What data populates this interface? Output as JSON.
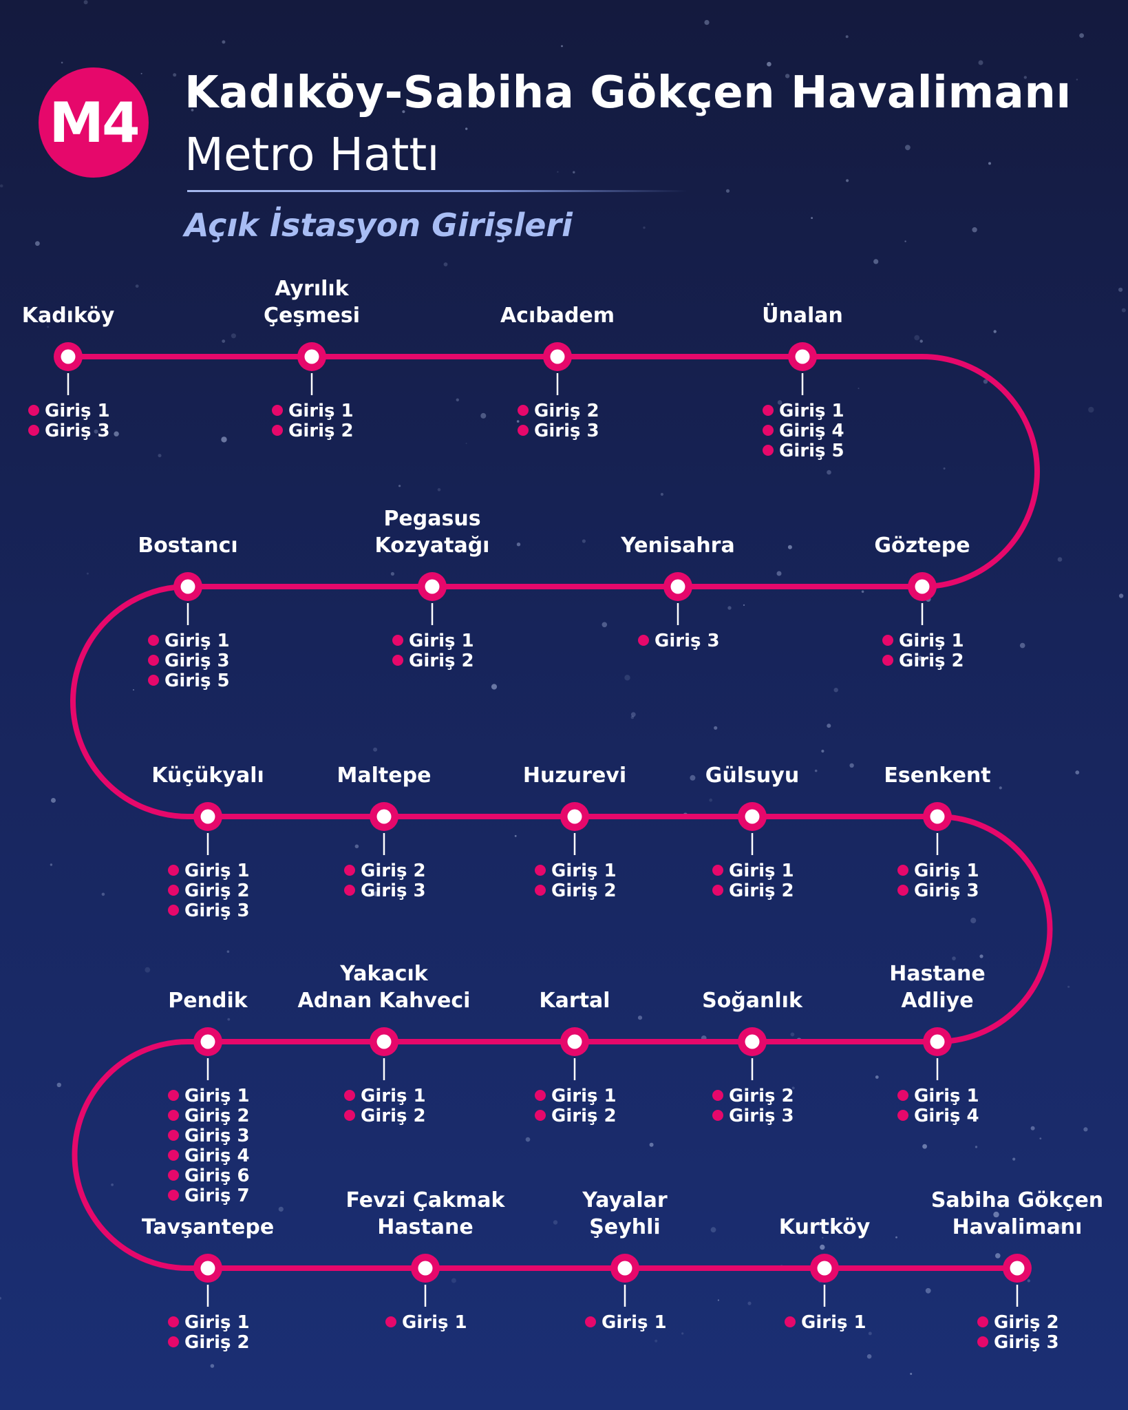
{
  "header": {
    "badge": "M4",
    "title_line1": "Kadıköy-Sabiha Gökçen Havalimanı",
    "title_line2": "Metro Hattı",
    "subtitle": "Açık İstasyon Girişleri"
  },
  "colors": {
    "line": "#e6086b",
    "accent": "#e6086b",
    "subtitle": "#a8bdf4",
    "text": "#ffffff"
  },
  "rows": [
    [
      {
        "name": [
          "Kadıköy"
        ],
        "entrances": [
          "Giriş 1",
          "Giriş 3"
        ]
      },
      {
        "name": [
          "Ayrılık",
          "Çeşmesi"
        ],
        "entrances": [
          "Giriş 1",
          "Giriş 2"
        ]
      },
      {
        "name": [
          "Acıbadem"
        ],
        "entrances": [
          "Giriş 2",
          "Giriş 3"
        ]
      },
      {
        "name": [
          "Ünalan"
        ],
        "entrances": [
          "Giriş 1",
          "Giriş 4",
          "Giriş 5"
        ]
      }
    ],
    [
      {
        "name": [
          "Bostancı"
        ],
        "entrances": [
          "Giriş 1",
          "Giriş 3",
          "Giriş 5"
        ]
      },
      {
        "name": [
          "Pegasus",
          "Kozyatağı"
        ],
        "entrances": [
          "Giriş 1",
          "Giriş 2"
        ]
      },
      {
        "name": [
          "Yenisahra"
        ],
        "entrances": [
          "Giriş 3"
        ]
      },
      {
        "name": [
          "Göztepe"
        ],
        "entrances": [
          "Giriş 1",
          "Giriş 2"
        ]
      }
    ],
    [
      {
        "name": [
          "Küçükyalı"
        ],
        "entrances": [
          "Giriş 1",
          "Giriş 2",
          "Giriş 3"
        ]
      },
      {
        "name": [
          "Maltepe"
        ],
        "entrances": [
          "Giriş 2",
          "Giriş 3"
        ]
      },
      {
        "name": [
          "Huzurevi"
        ],
        "entrances": [
          "Giriş 1",
          "Giriş 2"
        ]
      },
      {
        "name": [
          "Gülsuyu"
        ],
        "entrances": [
          "Giriş 1",
          "Giriş 2"
        ]
      },
      {
        "name": [
          "Esenkent"
        ],
        "entrances": [
          "Giriş 1",
          "Giriş 3"
        ]
      }
    ],
    [
      {
        "name": [
          "Pendik"
        ],
        "entrances": [
          "Giriş 1",
          "Giriş 2",
          "Giriş 3",
          "Giriş 4",
          "Giriş 6",
          "Giriş 7"
        ]
      },
      {
        "name": [
          "Yakacık",
          "Adnan Kahveci"
        ],
        "entrances": [
          "Giriş 1",
          "Giriş 2"
        ]
      },
      {
        "name": [
          "Kartal"
        ],
        "entrances": [
          "Giriş 1",
          "Giriş 2"
        ]
      },
      {
        "name": [
          "Soğanlık"
        ],
        "entrances": [
          "Giriş 2",
          "Giriş 3"
        ]
      },
      {
        "name": [
          "Hastane",
          "Adliye"
        ],
        "entrances": [
          "Giriş 1",
          "Giriş 4"
        ]
      }
    ],
    [
      {
        "name": [
          "Tavşantepe"
        ],
        "entrances": [
          "Giriş 1",
          "Giriş 2"
        ]
      },
      {
        "name": [
          "Fevzi Çakmak",
          "Hastane"
        ],
        "entrances": [
          "Giriş 1"
        ]
      },
      {
        "name": [
          "Yayalar",
          "Şeyhli"
        ],
        "entrances": [
          "Giriş 1"
        ]
      },
      {
        "name": [
          "Kurtköy"
        ],
        "entrances": [
          "Giriş 1"
        ]
      },
      {
        "name": [
          "Sabiha Gökçen",
          "Havalimanı"
        ],
        "entrances": [
          "Giriş 2",
          "Giriş 3"
        ]
      }
    ]
  ]
}
